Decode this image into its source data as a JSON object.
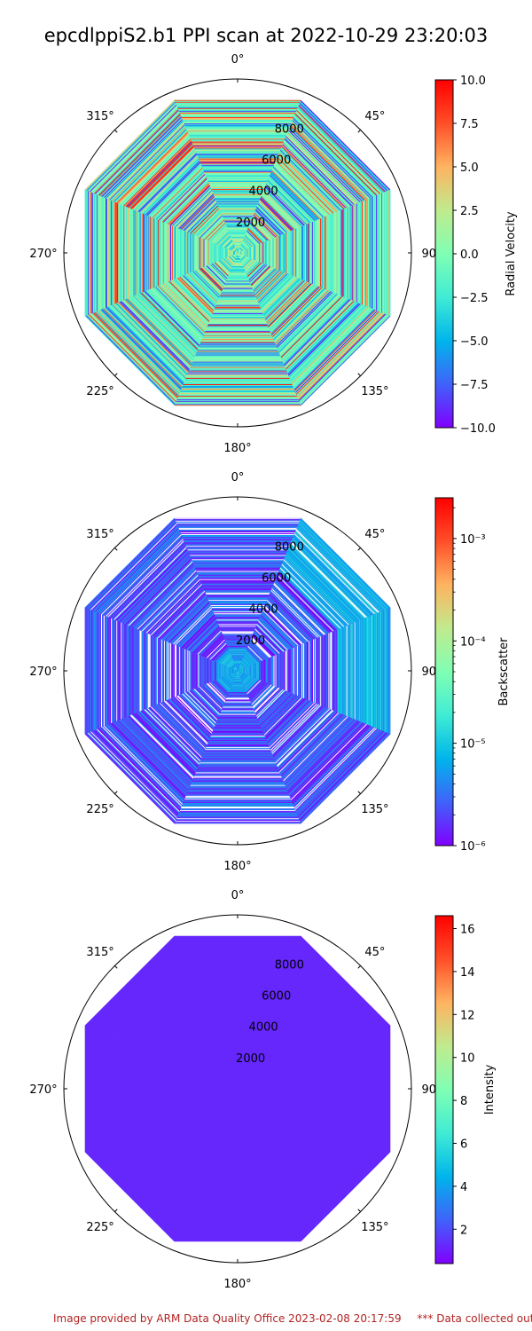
{
  "title": "epcdlppiS2.b1 PPI scan at 2022-10-29 23:20:03",
  "footer": {
    "provider": "Image provided by ARM Data Quality Office 2023-02-08 20:17:59",
    "note": "*** Data collected outside"
  },
  "colormap": [
    "#8000ff",
    "#4062fa",
    "#00b5eb",
    "#40ecd4",
    "#80ffb4",
    "#c0eb8d",
    "#ffb360",
    "#ff4f28",
    "#ff0000"
  ],
  "chart_data": [
    {
      "type": "polar-ppi",
      "theta_tick_labels": [
        "0°",
        "45°",
        "90°",
        "135°",
        "180°",
        "225°",
        "270°",
        "315°"
      ],
      "r_tick_labels": [
        "2000",
        "4000",
        "6000",
        "8000"
      ],
      "r_ticks": [
        2000,
        4000,
        6000,
        8000
      ],
      "r_max": 10300,
      "data_extent": 9800,
      "colorbar": {
        "label": "Radial Velocity",
        "scale": "linear",
        "range": [
          -10.0,
          10.0
        ],
        "ticks": [
          10.0,
          7.5,
          5.0,
          2.5,
          0.0,
          -2.5,
          -5.0,
          -7.5,
          -10.0
        ],
        "tick_labels": [
          "10.0",
          "7.5",
          "5.0",
          "2.5",
          "0.0",
          "−2.5",
          "−5.0",
          "−7.5",
          "−10.0"
        ]
      }
    },
    {
      "type": "polar-ppi",
      "theta_tick_labels": [
        "0°",
        "45°",
        "90°",
        "135°",
        "180°",
        "225°",
        "270°",
        "315°"
      ],
      "r_tick_labels": [
        "2000",
        "4000",
        "6000",
        "8000"
      ],
      "r_ticks": [
        2000,
        4000,
        6000,
        8000
      ],
      "r_max": 10300,
      "data_extent": 9800,
      "colorbar": {
        "label": "Backscatter",
        "scale": "log",
        "range": [
          1e-06,
          0.0025
        ],
        "ticks": [
          0.001,
          0.0001,
          1e-05,
          1e-06
        ],
        "tick_labels": [
          "10⁻³",
          "10⁻⁴",
          "10⁻⁵",
          "10⁻⁶"
        ]
      }
    },
    {
      "type": "polar-ppi",
      "theta_tick_labels": [
        "0°",
        "45°",
        "90°",
        "135°",
        "180°",
        "225°",
        "270°",
        "315°"
      ],
      "r_tick_labels": [
        "2000",
        "4000",
        "6000",
        "8000"
      ],
      "r_ticks": [
        2000,
        4000,
        6000,
        8000
      ],
      "r_max": 10300,
      "data_extent": 9800,
      "colorbar": {
        "label": "Intensity",
        "scale": "linear",
        "range": [
          0.4,
          16.6
        ],
        "ticks": [
          16,
          14,
          12,
          10,
          8,
          6,
          4,
          2
        ],
        "tick_labels": [
          "16",
          "14",
          "12",
          "10",
          "8",
          "6",
          "4",
          "2"
        ]
      }
    }
  ]
}
